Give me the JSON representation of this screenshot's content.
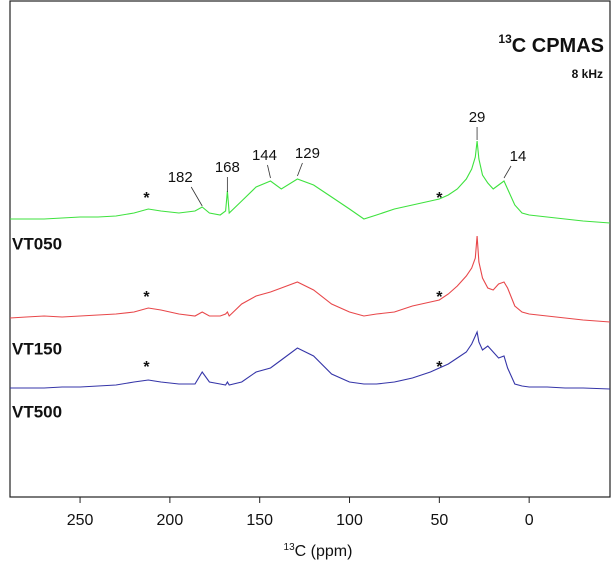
{
  "chart_data": {
    "type": "line",
    "title_superscript": "13",
    "title": "C CPMAS",
    "subtitle": "8 kHz",
    "xlabel_superscript": "13",
    "xlabel": "C (ppm)",
    "xlim": [
      289,
      -45
    ],
    "xticks": [
      250,
      200,
      150,
      100,
      50,
      0
    ],
    "x": [
      289,
      280,
      270,
      260,
      250,
      240,
      230,
      220,
      212,
      205,
      195,
      186,
      182,
      178,
      172,
      169,
      168,
      167,
      160,
      152,
      144,
      138,
      129,
      120,
      110,
      100,
      92,
      85,
      75,
      65,
      55,
      50,
      45,
      40,
      35,
      32,
      30,
      29,
      28,
      26,
      23,
      20,
      17,
      14,
      12,
      8,
      4,
      0,
      -10,
      -20,
      -30,
      -45
    ],
    "series": [
      {
        "name": "VT050",
        "color": "#3ee23e",
        "values": [
          0,
          0,
          0,
          1,
          2,
          2,
          3,
          6,
          10,
          8,
          6,
          8,
          12,
          6,
          4,
          8,
          28,
          6,
          18,
          32,
          38,
          30,
          40,
          34,
          22,
          10,
          0,
          4,
          10,
          14,
          18,
          20,
          24,
          30,
          40,
          50,
          62,
          78,
          60,
          44,
          36,
          30,
          34,
          38,
          30,
          14,
          6,
          4,
          2,
          0,
          -2,
          -4
        ]
      },
      {
        "name": "VT150",
        "color": "#e8474a",
        "values": [
          0,
          1,
          2,
          1,
          2,
          3,
          4,
          6,
          10,
          8,
          4,
          2,
          6,
          2,
          2,
          4,
          6,
          2,
          14,
          22,
          26,
          30,
          36,
          28,
          14,
          6,
          2,
          4,
          6,
          12,
          16,
          18,
          24,
          32,
          42,
          50,
          60,
          82,
          56,
          40,
          30,
          28,
          34,
          36,
          30,
          12,
          6,
          4,
          2,
          0,
          -2,
          -4
        ]
      },
      {
        "name": "VT500",
        "color": "#3535a8",
        "values": [
          0,
          0,
          0,
          1,
          1,
          2,
          3,
          6,
          8,
          6,
          4,
          4,
          16,
          6,
          4,
          3,
          6,
          3,
          6,
          16,
          20,
          28,
          40,
          32,
          14,
          6,
          4,
          4,
          6,
          10,
          16,
          20,
          24,
          30,
          36,
          44,
          52,
          56,
          46,
          38,
          42,
          36,
          30,
          32,
          20,
          4,
          2,
          1,
          1,
          0,
          0,
          -1
        ]
      }
    ],
    "peak_labels": [
      182,
      168,
      144,
      129,
      29,
      14
    ],
    "annotations": [
      {
        "label": "*",
        "x": 213
      },
      {
        "label": "*",
        "x": 50
      }
    ]
  }
}
